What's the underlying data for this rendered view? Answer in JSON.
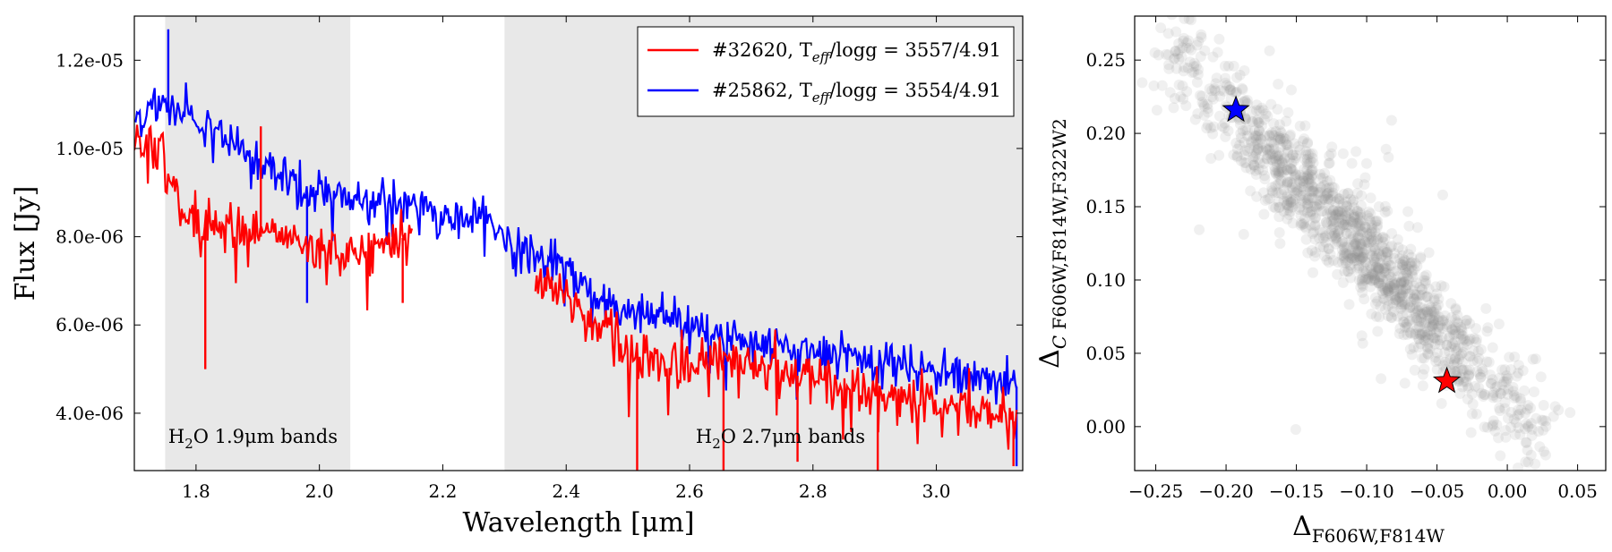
{
  "chart_data": [
    {
      "type": "line",
      "xlabel": "Wavelength [μm]",
      "ylabel": "Flux [Jy]",
      "xlim": [
        1.7,
        3.14
      ],
      "ylim": [
        2.7e-06,
        1.3e-05
      ],
      "xticks": [
        1.8,
        2.0,
        2.2,
        2.4,
        2.6,
        2.8,
        3.0
      ],
      "xtick_labels": [
        "1.8",
        "2.0",
        "2.2",
        "2.4",
        "2.6",
        "2.8",
        "3.0"
      ],
      "yticks": [
        4e-06,
        6e-06,
        8e-06,
        1e-05,
        1.2e-05
      ],
      "ytick_labels": [
        "4.0e-06",
        "6.0e-06",
        "8.0e-06",
        "1.0e-05",
        "1.2e-05"
      ],
      "shaded_regions": [
        {
          "x0": 1.75,
          "x1": 2.05,
          "label_prefix": "H",
          "label_sub": "2",
          "label_suffix": "O 1.9μm bands",
          "label_x": 1.755
        },
        {
          "x0": 2.3,
          "x1": 3.14,
          "label_prefix": "H",
          "label_sub": "2",
          "label_suffix": "O 2.7μm bands",
          "label_x": 2.61
        }
      ],
      "legend": {
        "position": "top-right",
        "entries": [
          {
            "id": "32620",
            "label": "#32620, T",
            "sub": "eff",
            "rest": "/logg = 3557/4.91",
            "color": "#ff0000"
          },
          {
            "id": "25862",
            "label": "#25862, T",
            "sub": "eff",
            "rest": "/logg = 3554/4.91",
            "color": "#0000ff"
          }
        ]
      },
      "series": [
        {
          "name": "#32620",
          "color": "#ff0000",
          "segments": [
            {
              "x": [
                1.7,
                1.72,
                1.74,
                1.76,
                1.78,
                1.8,
                1.82,
                1.84,
                1.86,
                1.88,
                1.9,
                1.92,
                1.94,
                1.96,
                1.98,
                2.0,
                2.02,
                2.04,
                2.06,
                2.08,
                2.1,
                2.12,
                2.14,
                2.15
              ],
              "y": [
                1.01e-05,
                1.02e-05,
                1e-05,
                9.2e-06,
                8.6e-06,
                8.4e-06,
                8.3e-06,
                8.2e-06,
                8.1e-06,
                8.1e-06,
                8e-06,
                8e-06,
                7.9e-06,
                7.9e-06,
                7.8e-06,
                7.7e-06,
                7.6e-06,
                7.5e-06,
                7.6e-06,
                7.7e-06,
                7.8e-06,
                7.9e-06,
                8e-06,
                8.05e-06
              ]
            },
            {
              "x": [
                2.35,
                2.37,
                2.39,
                2.41,
                2.43,
                2.45,
                2.47,
                2.49,
                2.51,
                2.53,
                2.55,
                2.6,
                2.65,
                2.7,
                2.75,
                2.8,
                2.85,
                2.9,
                2.95,
                3.0,
                3.05,
                3.1,
                3.13
              ],
              "y": [
                6.7e-06,
                6.8e-06,
                6.7e-06,
                6.5e-06,
                6.3e-06,
                6e-06,
                5.8e-06,
                5.6e-06,
                5.4e-06,
                5.3e-06,
                5.2e-06,
                5.2e-06,
                5.1e-06,
                5e-06,
                4.9e-06,
                4.8e-06,
                4.6e-06,
                4.4e-06,
                4.3e-06,
                4.2e-06,
                4.1e-06,
                3.9e-06,
                3.8e-06
              ]
            }
          ],
          "dips": [
            {
              "x": 1.815,
              "y": 5e-06
            },
            {
              "x": 1.905,
              "y": 1.05e-05
            },
            {
              "x": 2.135,
              "y": 6.5e-06
            },
            {
              "x": 2.515,
              "y": 2.7e-06
            },
            {
              "x": 2.655,
              "y": 2.7e-06
            },
            {
              "x": 2.775,
              "y": 2.9e-06
            },
            {
              "x": 2.905,
              "y": 2.7e-06
            },
            {
              "x": 3.125,
              "y": 2.8e-06
            }
          ]
        },
        {
          "name": "#25862",
          "color": "#0000ff",
          "segments": [
            {
              "x": [
                1.7,
                1.72,
                1.74,
                1.76,
                1.78,
                1.8,
                1.82,
                1.84,
                1.86,
                1.88,
                1.9,
                1.92,
                1.94,
                1.96,
                1.98,
                2.0,
                2.02,
                2.04,
                2.06,
                2.08,
                2.1,
                2.12,
                2.14,
                2.16,
                2.18,
                2.2,
                2.22,
                2.24,
                2.26,
                2.28,
                2.3,
                2.32,
                2.34,
                2.36,
                2.38,
                2.4,
                2.42,
                2.44,
                2.46,
                2.48,
                2.5,
                2.55,
                2.6,
                2.65,
                2.7,
                2.75,
                2.8,
                2.85,
                2.9,
                2.95,
                3.0,
                3.05,
                3.1,
                3.13
              ],
              "y": [
                1.07e-05,
                1.08e-05,
                1.1e-05,
                1.09e-05,
                1.08e-05,
                1.06e-05,
                1.05e-05,
                1.04e-05,
                1.02e-05,
                1e-05,
                9.8e-06,
                9.6e-06,
                9.4e-06,
                9.2e-06,
                9e-06,
                9e-06,
                9e-06,
                8.95e-06,
                8.9e-06,
                8.85e-06,
                8.8e-06,
                8.75e-06,
                8.7e-06,
                8.6e-06,
                8.55e-06,
                8.5e-06,
                8.5e-06,
                8.45e-06,
                8.4e-06,
                8.3e-06,
                8e-06,
                7.7e-06,
                7.6e-06,
                7.5e-06,
                7.4e-06,
                7.2e-06,
                7e-06,
                6.7e-06,
                6.5e-06,
                6.4e-06,
                6.3e-06,
                6.1e-06,
                6e-06,
                5.8e-06,
                5.6e-06,
                5.5e-06,
                5.4e-06,
                5.3e-06,
                5.1e-06,
                5e-06,
                4.9e-06,
                4.8e-06,
                4.7e-06,
                4.6e-06
              ]
            }
          ],
          "dips": [
            {
              "x": 1.755,
              "y": 1.27e-05
            },
            {
              "x": 1.98,
              "y": 6.5e-06
            },
            {
              "x": 3.13,
              "y": 2.8e-06
            }
          ]
        }
      ]
    },
    {
      "type": "scatter",
      "xlabel_main": "Δ",
      "xlabel_sub": "F606W,F814W",
      "ylabel_main": "Δ",
      "ylabel_sub_italic": "C",
      "ylabel_sub": " F606W,F814W,F322W2",
      "xlim": [
        -0.265,
        0.07
      ],
      "ylim": [
        -0.03,
        0.28
      ],
      "xticks": [
        -0.25,
        -0.2,
        -0.15,
        -0.1,
        -0.05,
        0.0,
        0.05
      ],
      "xtick_labels": [
        "−0.25",
        "−0.20",
        "−0.15",
        "−0.10",
        "−0.05",
        "0.00",
        "0.05"
      ],
      "yticks": [
        0.0,
        0.05,
        0.1,
        0.15,
        0.2,
        0.25
      ],
      "ytick_labels": [
        "0.00",
        "0.05",
        "0.10",
        "0.15",
        "0.20",
        "0.25"
      ],
      "point_color": "#888888",
      "point_count": 1400,
      "trend": {
        "x_start": -0.235,
        "y_start": 0.255,
        "x_end": 0.02,
        "y_end": -0.005
      },
      "highlighted": [
        {
          "name": "#25862",
          "x": -0.193,
          "y": 0.216,
          "color": "#0000ff",
          "marker": "star"
        },
        {
          "name": "#32620",
          "x": -0.043,
          "y": 0.031,
          "color": "#ff0000",
          "marker": "star"
        }
      ]
    }
  ]
}
